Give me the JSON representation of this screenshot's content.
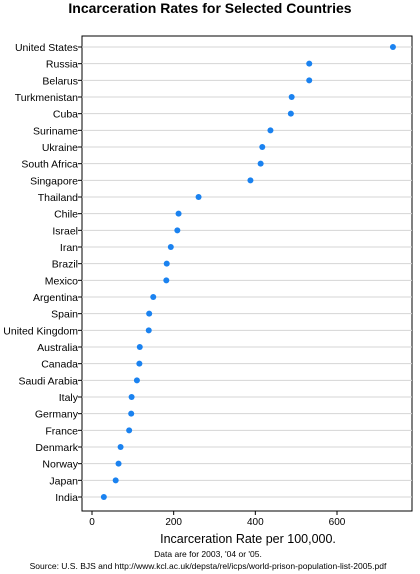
{
  "chart_data": {
    "type": "scatter",
    "title": "Incarceration Rates for Selected Countries",
    "xlabel": "Incarceration Rate per 100,000.",
    "ylabel": "",
    "xlim": [
      0,
      760
    ],
    "xticks": [
      0,
      200,
      400,
      600
    ],
    "grid": "horizontal",
    "point_color": "#1a82f0",
    "categories": [
      "United States",
      "Russia",
      "Belarus",
      "Turkmenistan",
      "Cuba",
      "Suriname",
      "Ukraine",
      "South Africa",
      "Singapore",
      "Thailand",
      "Chile",
      "Israel",
      "Iran",
      "Brazil",
      "Mexico",
      "Argentina",
      "Spain",
      "United Kingdom",
      "Australia",
      "Canada",
      "Saudi Arabia",
      "Italy",
      "Germany",
      "France",
      "Denmark",
      "Norway",
      "Japan",
      "India"
    ],
    "values": [
      737,
      532,
      532,
      489,
      487,
      437,
      417,
      413,
      388,
      261,
      212,
      209,
      193,
      183,
      182,
      150,
      140,
      139,
      117,
      116,
      110,
      97,
      96,
      91,
      70,
      65,
      58,
      29
    ],
    "notes": [
      "Data are for 2003, '04 or '05.",
      "Source: U.S. BJS and http://www.kcl.ac.uk/depsta/rel/icps/world-prison-population-list-2005.pdf"
    ]
  }
}
